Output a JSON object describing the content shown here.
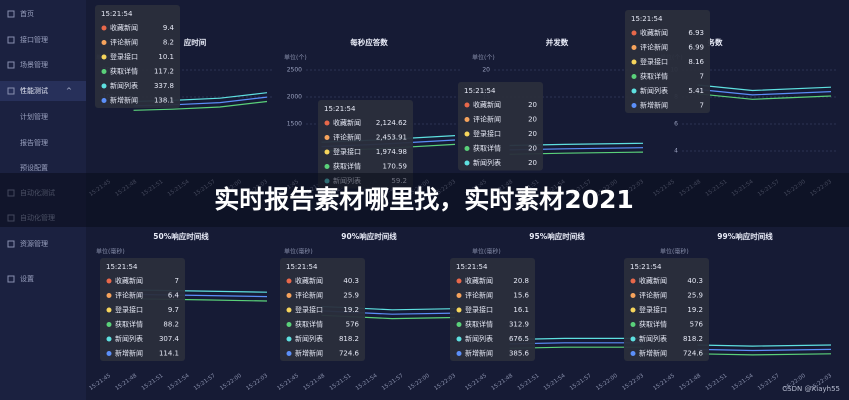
{
  "sidebar": [
    "首页",
    "接口管理",
    "场景管理",
    "性能测试",
    "计划管理",
    "报告管理",
    "预设配置",
    "自动化测试",
    "自动化管理",
    "资源管理",
    "设置"
  ],
  "banner": "实时报告素材哪里找，实时素材2021",
  "watermark": "CSDN @Xiayh55",
  "series_names": [
    "收藏新闻",
    "评论新闻",
    "登录接口",
    "获取详情",
    "新闻列表",
    "新增新闻"
  ],
  "time_axis": [
    "15:21:45",
    "15:21:48",
    "15:21:51",
    "15:21:54",
    "15:21:57",
    "15:22:00",
    "15:22:03"
  ],
  "panels": [
    {
      "title": "应时间",
      "unit": "单位(个)",
      "yticks": [
        "200",
        "100"
      ],
      "tooltip": {
        "time": "15:21:54",
        "values": [
          "9.4",
          "8.2",
          "10.1",
          "117.2",
          "337.8",
          "138.1"
        ]
      }
    },
    {
      "title": "每秒应答数",
      "unit": "单位(个)",
      "yticks": [
        "2500",
        "2000",
        "1500"
      ],
      "tooltip": {
        "time": "15:21:54",
        "values": [
          "2,124.62",
          "2,453.91",
          "1,974.98",
          "170.59",
          "59.2"
        ]
      }
    },
    {
      "title": "并发数",
      "unit": "单位(个)",
      "yticks": [
        "20",
        "15"
      ],
      "tooltip": {
        "time": "15:21:54",
        "values": [
          "20",
          "20",
          "20",
          "20",
          "20"
        ]
      }
    },
    {
      "title": "务数",
      "unit": "单位(个)",
      "yticks": [
        "10",
        "8",
        "6",
        "4"
      ],
      "tooltip": {
        "time": "15:21:54",
        "values": [
          "6.93",
          "6.99",
          "8.16",
          "7",
          "5.41",
          "7"
        ]
      }
    },
    {
      "title": "50%响应时间线",
      "unit": "单位(毫秒)",
      "tooltip": {
        "time": "15:21:54",
        "values": [
          "7",
          "6.4",
          "9.7",
          "88.2",
          "307.4",
          "114.1"
        ]
      }
    },
    {
      "title": "90%响应时间线",
      "unit": "单位(毫秒)",
      "tooltip": {
        "time": "15:21:54",
        "values": [
          "40.3",
          "25.9",
          "19.2",
          "576",
          "818.2",
          "724.6"
        ]
      }
    },
    {
      "title": "95%响应时间线",
      "unit": "单位(毫秒)",
      "tooltip": {
        "time": "15:21:54",
        "values": [
          "20.8",
          "15.6",
          "16.1",
          "312.9",
          "676.5",
          "385.6"
        ]
      }
    },
    {
      "title": "99%响应时间线",
      "unit": "单位(毫秒)",
      "tooltip": {
        "time": "15:21:54",
        "values": [
          "40.3",
          "25.9",
          "19.2",
          "576",
          "818.2",
          "724.6"
        ]
      }
    }
  ]
}
